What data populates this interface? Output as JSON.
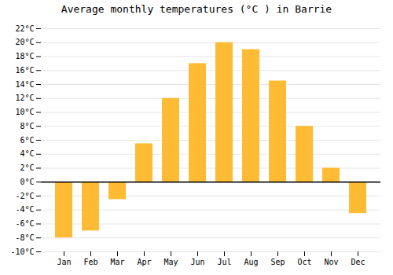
{
  "chart_data": {
    "type": "bar",
    "title": "Average monthly temperatures (°C ) in Barrie",
    "categories": [
      "Jan",
      "Feb",
      "Mar",
      "Apr",
      "May",
      "Jun",
      "Jul",
      "Aug",
      "Sep",
      "Oct",
      "Nov",
      "Dec"
    ],
    "values": [
      -8,
      -7,
      -2.5,
      5.5,
      12,
      17,
      20,
      19,
      14.5,
      8,
      2,
      -4.5
    ],
    "color": "#FFBB33",
    "ylim": [
      -10,
      22
    ],
    "yticks": [
      {
        "value": -10,
        "label": "-10°C"
      },
      {
        "value": -8,
        "label": "-8°C"
      },
      {
        "value": -6,
        "label": "-6°C"
      },
      {
        "value": -4,
        "label": "-4°C"
      },
      {
        "value": -2,
        "label": "-2°C"
      },
      {
        "value": 0,
        "label": "0°C"
      },
      {
        "value": 2,
        "label": "2°C"
      },
      {
        "value": 4,
        "label": "4°C"
      },
      {
        "value": 6,
        "label": "6°C"
      },
      {
        "value": 8,
        "label": "8°C"
      },
      {
        "value": 10,
        "label": "10°C"
      },
      {
        "value": 12,
        "label": "12°C"
      },
      {
        "value": 14,
        "label": "14°C"
      },
      {
        "value": 16,
        "label": "16°C"
      },
      {
        "value": 18,
        "label": "18°C"
      },
      {
        "value": 20,
        "label": "20°C"
      },
      {
        "value": 22,
        "label": "22°C"
      }
    ],
    "grid": true
  }
}
